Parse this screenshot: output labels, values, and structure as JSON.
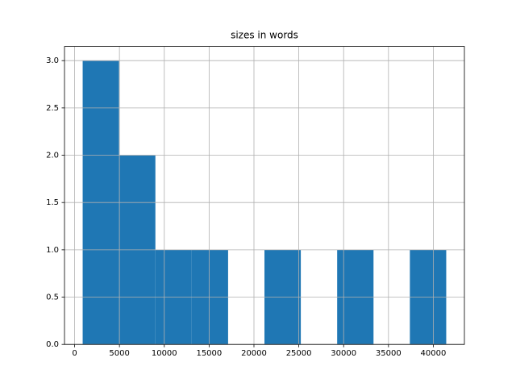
{
  "chart_data": {
    "type": "histogram",
    "title": "sizes in words",
    "bins": [
      900,
      4954,
      9008,
      13062,
      17116,
      21170,
      25224,
      29278,
      33332,
      37386,
      41440
    ],
    "counts": [
      3,
      2,
      1,
      1,
      0,
      1,
      0,
      1,
      0,
      1
    ],
    "color": "#1f77b4",
    "xlim": [
      -1127,
      43467
    ],
    "xticks": [
      0,
      5000,
      10000,
      15000,
      20000,
      25000,
      30000,
      35000,
      40000
    ],
    "ylim": [
      0,
      3.15
    ],
    "yticks": [
      {
        "value": 0,
        "label": "0.0"
      },
      {
        "value": 0.5,
        "label": "0.5"
      },
      {
        "value": 1,
        "label": "1.0"
      },
      {
        "value": 1.5,
        "label": "1.5"
      },
      {
        "value": 2,
        "label": "2.0"
      },
      {
        "value": 2.5,
        "label": "2.5"
      },
      {
        "value": 3,
        "label": "3.0"
      }
    ],
    "grid": true
  }
}
